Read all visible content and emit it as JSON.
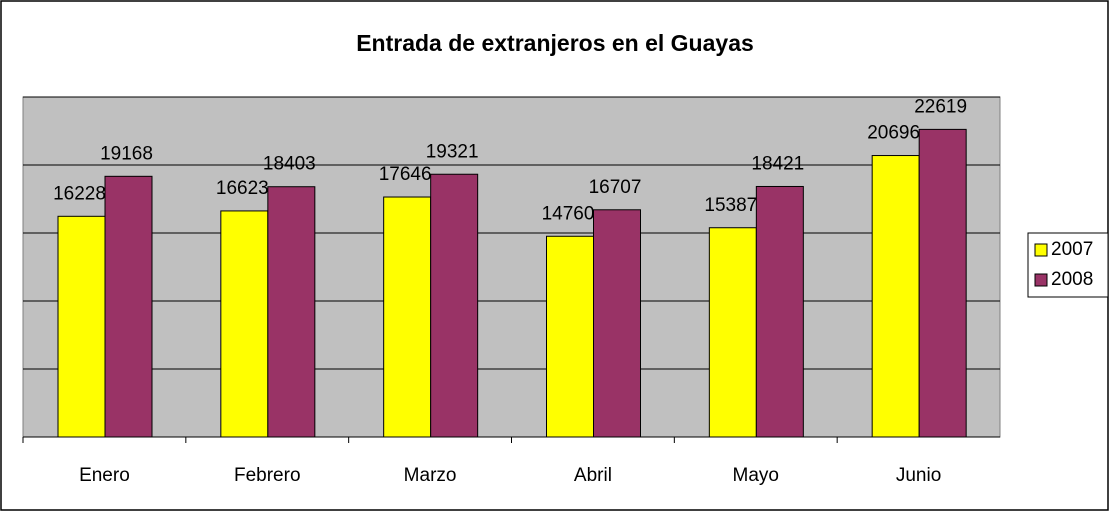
{
  "chart_data": {
    "type": "bar",
    "title": "Entrada de extranjeros en el Guayas",
    "categories": [
      "Enero",
      "Febrero",
      "Marzo",
      "Abril",
      "Mayo",
      "Junio"
    ],
    "series": [
      {
        "name": "2007",
        "color": "#ffff00",
        "values": [
          16228,
          16623,
          17646,
          14760,
          15387,
          20696
        ]
      },
      {
        "name": "2008",
        "color": "#993366",
        "values": [
          19168,
          18403,
          19321,
          16707,
          18421,
          22619
        ]
      }
    ],
    "ylim": [
      0,
      25000
    ],
    "yticks": [
      0,
      5000,
      10000,
      15000,
      20000,
      25000
    ],
    "grid": true,
    "legend": "right"
  }
}
